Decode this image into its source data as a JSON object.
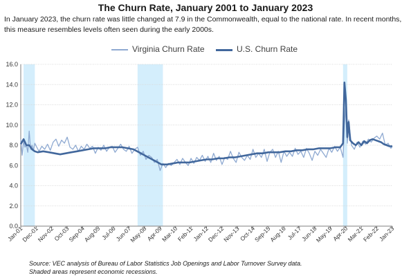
{
  "chart_data": {
    "type": "line",
    "title": "The Churn Rate, January 2001 to January 2023",
    "subtitle": "In January 2023, the churn rate was little changed at 7.9 in the Commonwealth, equal to the national rate. In recent months, this measure resembles levels often seen during the early 2000s.",
    "xlabel": "",
    "ylabel": "",
    "ylim": [
      0.0,
      16.0
    ],
    "yticks": [
      "0.0",
      "2.0",
      "4.0",
      "6.0",
      "8.0",
      "10.0",
      "12.0",
      "14.0",
      "16.0"
    ],
    "ytick_values": [
      0,
      2,
      4,
      6,
      8,
      10,
      12,
      14,
      16
    ],
    "xticks": [
      "Jan-01",
      "Dec-01",
      "Nov-02",
      "Oct-03",
      "Sep-04",
      "Aug-05",
      "Jul-06",
      "Jun-07",
      "May-08",
      "Apr-09",
      "Mar-10",
      "Feb-11",
      "Jan-12",
      "Dec-12",
      "Nov-13",
      "Oct-14",
      "Sep-15",
      "Aug-16",
      "Jul-17",
      "Jun-18",
      "May-19",
      "Apr-20",
      "Mar-21",
      "Feb-22",
      "Jan-23"
    ],
    "xtick_months": [
      0,
      11,
      22,
      33,
      44,
      55,
      66,
      77,
      88,
      99,
      110,
      121,
      132,
      143,
      154,
      165,
      176,
      187,
      198,
      209,
      220,
      231,
      242,
      253,
      264
    ],
    "x_range_months": [
      0,
      264
    ],
    "recessions": [
      {
        "start_month": 2,
        "end_month": 10
      },
      {
        "start_month": 83,
        "end_month": 101
      },
      {
        "start_month": 229,
        "end_month": 232
      }
    ],
    "grid": true,
    "legend_position": "top",
    "series": [
      {
        "name": "Virginia Churn Rate",
        "color": "#8ea9d1",
        "points": [
          [
            0,
            8.6
          ],
          [
            1,
            7.0
          ],
          [
            2,
            8.4
          ],
          [
            3,
            7.8
          ],
          [
            4,
            8.0
          ],
          [
            5,
            7.3
          ],
          [
            6,
            9.4
          ],
          [
            7,
            7.6
          ],
          [
            8,
            8.0
          ],
          [
            9,
            7.5
          ],
          [
            10,
            8.2
          ],
          [
            11,
            7.9
          ],
          [
            13,
            7.4
          ],
          [
            15,
            7.9
          ],
          [
            17,
            7.6
          ],
          [
            19,
            8.1
          ],
          [
            21,
            7.5
          ],
          [
            23,
            8.3
          ],
          [
            25,
            8.6
          ],
          [
            27,
            7.9
          ],
          [
            29,
            8.5
          ],
          [
            31,
            8.2
          ],
          [
            33,
            8.8
          ],
          [
            35,
            7.8
          ],
          [
            37,
            7.6
          ],
          [
            39,
            8.0
          ],
          [
            41,
            7.4
          ],
          [
            43,
            7.9
          ],
          [
            45,
            7.6
          ],
          [
            47,
            8.1
          ],
          [
            49,
            7.7
          ],
          [
            51,
            7.9
          ],
          [
            53,
            7.2
          ],
          [
            55,
            7.8
          ],
          [
            57,
            7.5
          ],
          [
            59,
            8.0
          ],
          [
            61,
            7.4
          ],
          [
            63,
            7.8
          ],
          [
            65,
            7.9
          ],
          [
            67,
            7.3
          ],
          [
            69,
            7.7
          ],
          [
            71,
            8.1
          ],
          [
            73,
            7.6
          ],
          [
            75,
            7.4
          ],
          [
            77,
            7.9
          ],
          [
            79,
            7.2
          ],
          [
            81,
            7.6
          ],
          [
            83,
            7.8
          ],
          [
            85,
            7.0
          ],
          [
            87,
            7.4
          ],
          [
            89,
            6.6
          ],
          [
            91,
            7.0
          ],
          [
            93,
            6.8
          ],
          [
            95,
            6.3
          ],
          [
            97,
            6.6
          ],
          [
            99,
            5.5
          ],
          [
            101,
            6.2
          ],
          [
            103,
            5.8
          ],
          [
            105,
            6.2
          ],
          [
            107,
            6.0
          ],
          [
            109,
            6.3
          ],
          [
            111,
            6.6
          ],
          [
            113,
            6.1
          ],
          [
            115,
            6.7
          ],
          [
            117,
            6.3
          ],
          [
            119,
            6.0
          ],
          [
            121,
            6.7
          ],
          [
            123,
            6.2
          ],
          [
            125,
            6.8
          ],
          [
            127,
            6.5
          ],
          [
            129,
            7.0
          ],
          [
            131,
            6.4
          ],
          [
            133,
            6.9
          ],
          [
            135,
            6.3
          ],
          [
            137,
            7.2
          ],
          [
            139,
            6.5
          ],
          [
            141,
            6.9
          ],
          [
            143,
            6.1
          ],
          [
            145,
            6.8
          ],
          [
            147,
            6.6
          ],
          [
            149,
            7.4
          ],
          [
            151,
            6.7
          ],
          [
            153,
            6.3
          ],
          [
            155,
            7.3
          ],
          [
            157,
            6.8
          ],
          [
            159,
            6.5
          ],
          [
            161,
            7.0
          ],
          [
            163,
            6.6
          ],
          [
            165,
            7.6
          ],
          [
            167,
            6.8
          ],
          [
            169,
            7.2
          ],
          [
            171,
            6.8
          ],
          [
            173,
            7.6
          ],
          [
            175,
            6.4
          ],
          [
            177,
            7.3
          ],
          [
            179,
            7.6
          ],
          [
            181,
            6.8
          ],
          [
            183,
            7.4
          ],
          [
            185,
            6.3
          ],
          [
            187,
            7.4
          ],
          [
            189,
            6.9
          ],
          [
            191,
            7.3
          ],
          [
            193,
            6.9
          ],
          [
            195,
            7.7
          ],
          [
            197,
            7.1
          ],
          [
            199,
            7.4
          ],
          [
            201,
            6.8
          ],
          [
            203,
            7.7
          ],
          [
            205,
            7.2
          ],
          [
            207,
            6.5
          ],
          [
            209,
            7.4
          ],
          [
            211,
            7.0
          ],
          [
            213,
            7.6
          ],
          [
            215,
            7.2
          ],
          [
            217,
            6.8
          ],
          [
            219,
            7.7
          ],
          [
            221,
            7.3
          ],
          [
            223,
            7.9
          ],
          [
            225,
            7.4
          ],
          [
            227,
            7.8
          ],
          [
            229,
            6.8
          ],
          [
            230,
            10.0
          ],
          [
            231,
            12.0
          ],
          [
            232,
            8.2
          ],
          [
            233,
            10.5
          ],
          [
            235,
            8.0
          ],
          [
            237,
            7.6
          ],
          [
            239,
            8.3
          ],
          [
            241,
            7.8
          ],
          [
            243,
            8.4
          ],
          [
            245,
            8.1
          ],
          [
            247,
            8.6
          ],
          [
            249,
            8.3
          ],
          [
            251,
            8.7
          ],
          [
            253,
            8.9
          ],
          [
            255,
            8.6
          ],
          [
            257,
            9.2
          ],
          [
            259,
            8.0
          ],
          [
            261,
            8.2
          ],
          [
            263,
            7.7
          ],
          [
            264,
            7.9
          ]
        ]
      },
      {
        "name": "U.S. Churn Rate",
        "color": "#41679c",
        "points": [
          [
            0,
            8.1
          ],
          [
            2,
            8.6
          ],
          [
            4,
            8.0
          ],
          [
            6,
            8.0
          ],
          [
            8,
            7.6
          ],
          [
            10,
            7.4
          ],
          [
            12,
            7.3
          ],
          [
            16,
            7.4
          ],
          [
            20,
            7.3
          ],
          [
            24,
            7.2
          ],
          [
            28,
            7.1
          ],
          [
            32,
            7.2
          ],
          [
            36,
            7.3
          ],
          [
            40,
            7.4
          ],
          [
            44,
            7.5
          ],
          [
            48,
            7.6
          ],
          [
            52,
            7.7
          ],
          [
            56,
            7.7
          ],
          [
            60,
            7.7
          ],
          [
            64,
            7.8
          ],
          [
            68,
            7.8
          ],
          [
            72,
            7.8
          ],
          [
            76,
            7.7
          ],
          [
            80,
            7.6
          ],
          [
            84,
            7.3
          ],
          [
            88,
            7.0
          ],
          [
            92,
            6.7
          ],
          [
            96,
            6.4
          ],
          [
            100,
            6.1
          ],
          [
            104,
            6.1
          ],
          [
            108,
            6.2
          ],
          [
            112,
            6.3
          ],
          [
            116,
            6.3
          ],
          [
            120,
            6.3
          ],
          [
            124,
            6.4
          ],
          [
            128,
            6.5
          ],
          [
            132,
            6.6
          ],
          [
            136,
            6.6
          ],
          [
            140,
            6.7
          ],
          [
            144,
            6.7
          ],
          [
            148,
            6.8
          ],
          [
            152,
            6.8
          ],
          [
            156,
            6.9
          ],
          [
            160,
            7.0
          ],
          [
            164,
            7.1
          ],
          [
            168,
            7.2
          ],
          [
            172,
            7.2
          ],
          [
            176,
            7.3
          ],
          [
            180,
            7.3
          ],
          [
            184,
            7.3
          ],
          [
            188,
            7.4
          ],
          [
            192,
            7.4
          ],
          [
            196,
            7.5
          ],
          [
            200,
            7.5
          ],
          [
            204,
            7.6
          ],
          [
            208,
            7.6
          ],
          [
            212,
            7.7
          ],
          [
            216,
            7.7
          ],
          [
            220,
            7.7
          ],
          [
            224,
            7.8
          ],
          [
            227,
            7.8
          ],
          [
            229,
            8.2
          ],
          [
            230,
            14.2
          ],
          [
            231,
            12.5
          ],
          [
            232,
            8.8
          ],
          [
            233,
            10.3
          ],
          [
            234,
            8.5
          ],
          [
            236,
            8.2
          ],
          [
            238,
            8.0
          ],
          [
            240,
            8.3
          ],
          [
            242,
            8.0
          ],
          [
            244,
            8.4
          ],
          [
            246,
            8.2
          ],
          [
            248,
            8.5
          ],
          [
            250,
            8.6
          ],
          [
            252,
            8.5
          ],
          [
            254,
            8.4
          ],
          [
            256,
            8.3
          ],
          [
            258,
            8.1
          ],
          [
            260,
            8.0
          ],
          [
            262,
            7.9
          ],
          [
            264,
            7.9
          ]
        ]
      }
    ]
  },
  "source_lines": [
    "Source: VEC analysis of Bureau of Labor Statistics Job Openings and Labor Turnover Survey data.",
    "Shaded areas represent economic recessions."
  ]
}
